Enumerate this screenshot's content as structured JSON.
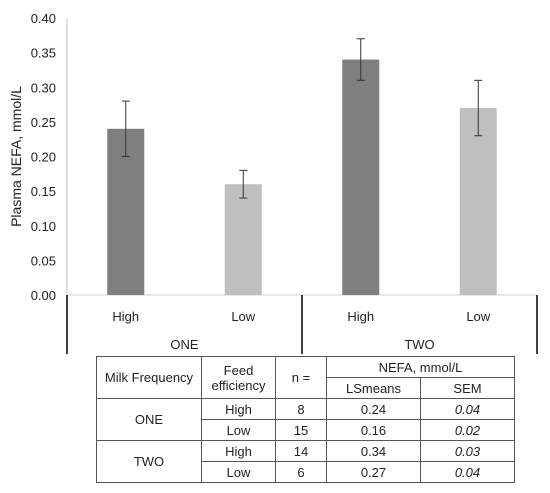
{
  "chart_data": {
    "type": "bar",
    "ylabel": "Plasma NEFA, mmol/L",
    "ylim": [
      0,
      0.4
    ],
    "yticks": [
      "0.00",
      "0.05",
      "0.10",
      "0.15",
      "0.20",
      "0.25",
      "0.30",
      "0.35",
      "0.40"
    ],
    "groups": [
      {
        "name": "ONE",
        "bars": [
          {
            "category": "High",
            "value": 0.24,
            "err_low": 0.2,
            "err_high": 0.28,
            "color": "#7f7f7f"
          },
          {
            "category": "Low",
            "value": 0.16,
            "err_low": 0.14,
            "err_high": 0.18,
            "color": "#bfbfbf"
          }
        ]
      },
      {
        "name": "TWO",
        "bars": [
          {
            "category": "High",
            "value": 0.34,
            "err_low": 0.31,
            "err_high": 0.37,
            "color": "#7f7f7f"
          },
          {
            "category": "Low",
            "value": 0.27,
            "err_low": 0.23,
            "err_high": 0.31,
            "color": "#bfbfbf"
          }
        ]
      }
    ],
    "grid": false,
    "legend": "none"
  },
  "table": {
    "headers": {
      "milk_frequency": "Milk Frequency",
      "feed_efficiency": "Feed efficiency",
      "n": "n =",
      "nefa": "NEFA, mmol/L",
      "lsmeans": "LSmeans",
      "sem": "SEM"
    },
    "rows": [
      {
        "group": "ONE",
        "fe": "High",
        "n": "8",
        "lsmeans": "0.24",
        "sem": "0.04"
      },
      {
        "group": "",
        "fe": "Low",
        "n": "15",
        "lsmeans": "0.16",
        "sem": "0.02"
      },
      {
        "group": "TWO",
        "fe": "High",
        "n": "14",
        "lsmeans": "0.34",
        "sem": "0.03"
      },
      {
        "group": "",
        "fe": "Low",
        "n": "6",
        "lsmeans": "0.27",
        "sem": "0.04"
      }
    ]
  }
}
